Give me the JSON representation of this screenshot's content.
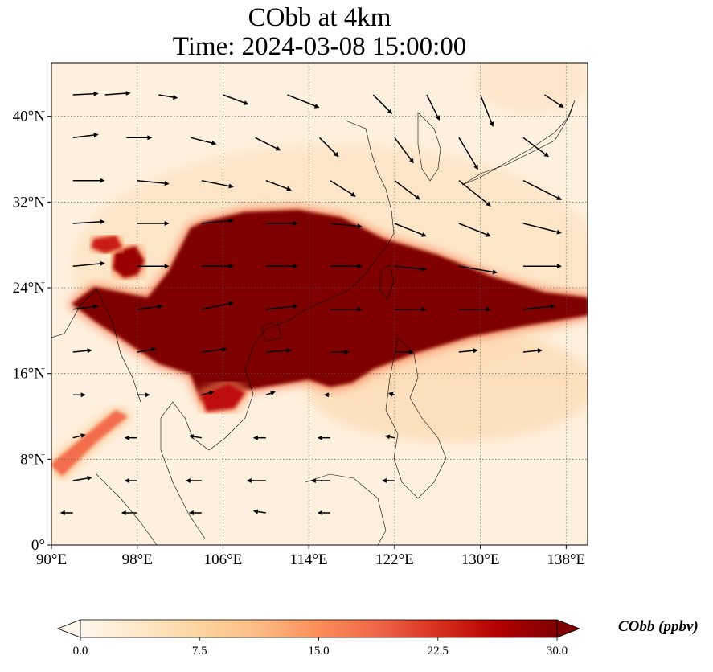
{
  "title": {
    "line1": "CObb at 4km",
    "line2": "Time: 2024-03-08 15:00:00"
  },
  "chart_data": {
    "type": "heatmap",
    "variable": "CObb",
    "level": "4km",
    "time": "2024-03-08 15:00:00",
    "lon_range": [
      90,
      140
    ],
    "lat_range": [
      0,
      45
    ],
    "x_ticks": [
      {
        "value": 90,
        "label": "90°E"
      },
      {
        "value": 98,
        "label": "98°E"
      },
      {
        "value": 106,
        "label": "106°E"
      },
      {
        "value": 114,
        "label": "114°E"
      },
      {
        "value": 122,
        "label": "122°E"
      },
      {
        "value": 130,
        "label": "130°E"
      },
      {
        "value": 138,
        "label": "138°E"
      }
    ],
    "y_ticks": [
      {
        "value": 0,
        "label": "0°"
      },
      {
        "value": 8,
        "label": "8°N"
      },
      {
        "value": 16,
        "label": "16°N"
      },
      {
        "value": 24,
        "label": "24°N"
      },
      {
        "value": 32,
        "label": "32°N"
      },
      {
        "value": 40,
        "label": "40°N"
      }
    ],
    "gridlines": true,
    "colorbar": {
      "label": "CObb (ppbv)",
      "min": 0.0,
      "max": 30.0,
      "extend": "both",
      "ticks": [
        {
          "value": 0,
          "label": "0.0"
        },
        {
          "value": 7.5,
          "label": "7.5"
        },
        {
          "value": 15,
          "label": "15.0"
        },
        {
          "value": 22.5,
          "label": "22.5"
        },
        {
          "value": 30,
          "label": "30.0"
        }
      ],
      "colormap": [
        "#fff7ec",
        "#fee8c8",
        "#fdd49e",
        "#fdbb84",
        "#fc8d59",
        "#ef6548",
        "#d7301f",
        "#b30000",
        "#7f0000"
      ]
    },
    "plume_regions": [
      {
        "name": "main-plume",
        "value": 30,
        "points": [
          [
            104,
            30
          ],
          [
            108,
            31
          ],
          [
            113,
            31.2
          ],
          [
            117,
            30.5
          ],
          [
            121,
            28.5
          ],
          [
            126,
            27
          ],
          [
            131,
            25
          ],
          [
            136,
            23.5
          ],
          [
            140,
            23
          ],
          [
            140,
            21.5
          ],
          [
            134,
            20.5
          ],
          [
            129,
            19.5
          ],
          [
            124,
            18
          ],
          [
            120,
            16.5
          ],
          [
            118,
            15.2
          ],
          [
            116,
            14.8
          ],
          [
            114,
            15.5
          ],
          [
            111,
            15
          ],
          [
            108,
            14.5
          ],
          [
            106,
            14.3
          ],
          [
            104,
            13.5
          ],
          [
            103,
            16
          ],
          [
            100,
            17
          ],
          [
            97,
            19
          ],
          [
            94,
            21
          ],
          [
            92,
            22.5
          ],
          [
            94,
            24
          ],
          [
            99,
            23
          ],
          [
            101,
            25.5
          ],
          [
            102,
            27.5
          ],
          [
            103,
            29.5
          ]
        ]
      },
      {
        "name": "myanmar-patch",
        "value": 28,
        "points": [
          [
            96,
            27.3
          ],
          [
            97.8,
            27.8
          ],
          [
            98.6,
            26.5
          ],
          [
            98,
            25.3
          ],
          [
            96.8,
            25
          ],
          [
            95.8,
            25.8
          ]
        ]
      },
      {
        "name": "india-patch",
        "value": 24,
        "points": [
          [
            94,
            28.5
          ],
          [
            96,
            28.8
          ],
          [
            96.5,
            27.8
          ],
          [
            95,
            27.3
          ],
          [
            93.8,
            27.8
          ]
        ]
      },
      {
        "name": "mekong-patch",
        "value": 25,
        "points": [
          [
            104,
            14
          ],
          [
            106.5,
            15
          ],
          [
            108,
            14.2
          ],
          [
            107,
            12.8
          ],
          [
            104.5,
            12.5
          ]
        ]
      },
      {
        "name": "bay-of-bengal-streak",
        "value": 18,
        "points": [
          [
            90,
            7.5
          ],
          [
            93,
            10
          ],
          [
            96,
            12.5
          ],
          [
            97,
            12
          ],
          [
            94,
            9.5
          ],
          [
            91,
            6.5
          ]
        ]
      }
    ],
    "wind_vectors": [
      {
        "lon": 92,
        "lat": 42,
        "u": 4,
        "v": 0.2
      },
      {
        "lon": 95,
        "lat": 42,
        "u": 4,
        "v": 0.3
      },
      {
        "lon": 100,
        "lat": 42,
        "u": 3,
        "v": -0.5
      },
      {
        "lon": 106,
        "lat": 42,
        "u": 4,
        "v": -1.5
      },
      {
        "lon": 112,
        "lat": 42,
        "u": 5,
        "v": -2
      },
      {
        "lon": 120,
        "lat": 42,
        "u": 3,
        "v": -3
      },
      {
        "lon": 125,
        "lat": 42,
        "u": 2,
        "v": -4
      },
      {
        "lon": 130,
        "lat": 42,
        "u": 2,
        "v": -5
      },
      {
        "lon": 136,
        "lat": 42,
        "u": 3,
        "v": -2
      },
      {
        "lon": 92,
        "lat": 38,
        "u": 4,
        "v": 0.5
      },
      {
        "lon": 97,
        "lat": 38,
        "u": 4,
        "v": 0
      },
      {
        "lon": 103,
        "lat": 38,
        "u": 4,
        "v": -1
      },
      {
        "lon": 109,
        "lat": 38,
        "u": 4,
        "v": -2
      },
      {
        "lon": 115,
        "lat": 38,
        "u": 3,
        "v": -3
      },
      {
        "lon": 122,
        "lat": 38,
        "u": 3,
        "v": -4
      },
      {
        "lon": 128,
        "lat": 38,
        "u": 3,
        "v": -5
      },
      {
        "lon": 134,
        "lat": 38,
        "u": 4,
        "v": -3
      },
      {
        "lon": 92,
        "lat": 34,
        "u": 5,
        "v": 0
      },
      {
        "lon": 98,
        "lat": 34,
        "u": 5,
        "v": -0.5
      },
      {
        "lon": 104,
        "lat": 34,
        "u": 5,
        "v": -1
      },
      {
        "lon": 110,
        "lat": 34,
        "u": 4,
        "v": -1.5
      },
      {
        "lon": 116,
        "lat": 34,
        "u": 4,
        "v": -2.5
      },
      {
        "lon": 122,
        "lat": 34,
        "u": 4,
        "v": -3
      },
      {
        "lon": 128,
        "lat": 34,
        "u": 5,
        "v": -4
      },
      {
        "lon": 134,
        "lat": 34,
        "u": 6,
        "v": -3
      },
      {
        "lon": 92,
        "lat": 30,
        "u": 5,
        "v": 0.3
      },
      {
        "lon": 98,
        "lat": 30,
        "u": 5,
        "v": 0
      },
      {
        "lon": 104,
        "lat": 30,
        "u": 5,
        "v": 0.5
      },
      {
        "lon": 110,
        "lat": 30,
        "u": 5,
        "v": 0
      },
      {
        "lon": 116,
        "lat": 30,
        "u": 5,
        "v": -0.5
      },
      {
        "lon": 122,
        "lat": 30,
        "u": 5,
        "v": -2
      },
      {
        "lon": 128,
        "lat": 30,
        "u": 5,
        "v": -2
      },
      {
        "lon": 134,
        "lat": 30,
        "u": 6,
        "v": -1.5
      },
      {
        "lon": 92,
        "lat": 26,
        "u": 5,
        "v": 0.5
      },
      {
        "lon": 98,
        "lat": 26,
        "u": 5,
        "v": 0
      },
      {
        "lon": 104,
        "lat": 26,
        "u": 5,
        "v": 0
      },
      {
        "lon": 110,
        "lat": 26,
        "u": 5,
        "v": 0
      },
      {
        "lon": 116,
        "lat": 26,
        "u": 5,
        "v": 0
      },
      {
        "lon": 122,
        "lat": 26,
        "u": 5,
        "v": -0.5
      },
      {
        "lon": 128,
        "lat": 26,
        "u": 6,
        "v": -1
      },
      {
        "lon": 134,
        "lat": 26,
        "u": 6,
        "v": 0
      },
      {
        "lon": 92,
        "lat": 22,
        "u": 4,
        "v": 0.5
      },
      {
        "lon": 98,
        "lat": 22,
        "u": 4,
        "v": 0.5
      },
      {
        "lon": 104,
        "lat": 22,
        "u": 5,
        "v": 1
      },
      {
        "lon": 110,
        "lat": 22,
        "u": 5,
        "v": 0.5
      },
      {
        "lon": 116,
        "lat": 22,
        "u": 5,
        "v": 0
      },
      {
        "lon": 122,
        "lat": 22,
        "u": 5,
        "v": 0
      },
      {
        "lon": 128,
        "lat": 22,
        "u": 5,
        "v": 0
      },
      {
        "lon": 134,
        "lat": 22,
        "u": 5,
        "v": 0.5
      },
      {
        "lon": 92,
        "lat": 18,
        "u": 3,
        "v": 0.3
      },
      {
        "lon": 98,
        "lat": 18,
        "u": 3,
        "v": 0.5
      },
      {
        "lon": 104,
        "lat": 18,
        "u": 4,
        "v": 0.5
      },
      {
        "lon": 110,
        "lat": 18,
        "u": 4,
        "v": 0.3
      },
      {
        "lon": 116,
        "lat": 18,
        "u": 3,
        "v": 0
      },
      {
        "lon": 122,
        "lat": 18,
        "u": 3,
        "v": 0
      },
      {
        "lon": 128,
        "lat": 18,
        "u": 3,
        "v": 0.3
      },
      {
        "lon": 134,
        "lat": 18,
        "u": 3,
        "v": 0.3
      },
      {
        "lon": 92,
        "lat": 14,
        "u": 2,
        "v": 0
      },
      {
        "lon": 98,
        "lat": 14,
        "u": 2,
        "v": 0
      },
      {
        "lon": 104,
        "lat": 14,
        "u": 2,
        "v": 0.5
      },
      {
        "lon": 110,
        "lat": 14,
        "u": 1.5,
        "v": 0.5
      },
      {
        "lon": 116,
        "lat": 14,
        "u": -1,
        "v": 0
      },
      {
        "lon": 122,
        "lat": 14,
        "u": -1,
        "v": 0.3
      },
      {
        "lon": 92,
        "lat": 10,
        "u": 2,
        "v": 0.5
      },
      {
        "lon": 98,
        "lat": 10,
        "u": -2,
        "v": 0
      },
      {
        "lon": 104,
        "lat": 10,
        "u": -2,
        "v": 0.3
      },
      {
        "lon": 110,
        "lat": 10,
        "u": -2,
        "v": 0
      },
      {
        "lon": 116,
        "lat": 10,
        "u": -2,
        "v": 0
      },
      {
        "lon": 122,
        "lat": 10,
        "u": -1.5,
        "v": 0.3
      },
      {
        "lon": 92,
        "lat": 6,
        "u": 3,
        "v": 0.5
      },
      {
        "lon": 98,
        "lat": 6,
        "u": -2,
        "v": 0
      },
      {
        "lon": 104,
        "lat": 6,
        "u": -2.5,
        "v": 0
      },
      {
        "lon": 110,
        "lat": 6,
        "u": -3,
        "v": 0
      },
      {
        "lon": 116,
        "lat": 6,
        "u": -3,
        "v": 0
      },
      {
        "lon": 122,
        "lat": 6,
        "u": -2,
        "v": 0
      },
      {
        "lon": 92,
        "lat": 3,
        "u": -2,
        "v": 0
      },
      {
        "lon": 98,
        "lat": 3,
        "u": -2.5,
        "v": 0
      },
      {
        "lon": 104,
        "lat": 3,
        "u": -2,
        "v": 0
      },
      {
        "lon": 110,
        "lat": 3,
        "u": -2,
        "v": 0.3
      },
      {
        "lon": 116,
        "lat": 3,
        "u": -2,
        "v": 0
      }
    ]
  }
}
